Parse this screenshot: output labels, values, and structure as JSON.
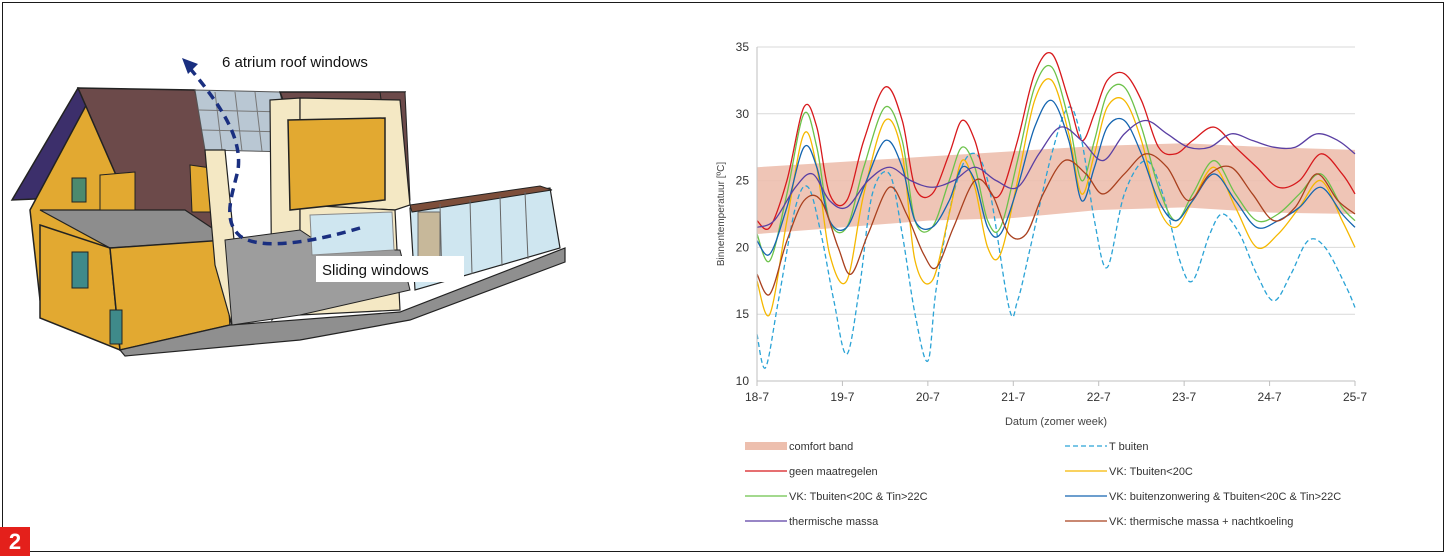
{
  "figure_number": "2",
  "illustration": {
    "label_roof": "6 atrium roof windows",
    "label_sliding": "Sliding windows"
  },
  "colors": {
    "comfort": "#edbfae",
    "t_buiten": "#2aa3d6",
    "geen": "#d7191c",
    "vk_tbuiten": "#f5b800",
    "vk_tin": "#6cc24a",
    "vk_zonwering": "#1465b0",
    "thermische": "#5a3fa3",
    "massa_nacht": "#a9401e"
  },
  "chart_data": {
    "type": "line",
    "xlabel": "Datum (zomer week)",
    "ylabel": "Binnentemperatuur [ºC]",
    "x_ticks": [
      "18-7",
      "19-7",
      "20-7",
      "21-7",
      "22-7",
      "23-7",
      "24-7",
      "25-7"
    ],
    "ylim": [
      10,
      35
    ],
    "y_ticks": [
      10,
      15,
      20,
      25,
      30,
      35
    ],
    "grid": "horizontal",
    "legend": "bottom",
    "comfort_band": {
      "name": "comfort band",
      "x": [
        0,
        1,
        2,
        3,
        4,
        5,
        6,
        7
      ],
      "lower": [
        21.0,
        21.5,
        22.0,
        22.2,
        22.8,
        23.0,
        22.6,
        22.5
      ],
      "upper": [
        26.0,
        26.4,
        26.8,
        27.2,
        27.6,
        27.8,
        27.5,
        27.3
      ]
    },
    "series": [
      {
        "name": "T buiten",
        "key": "t_buiten",
        "dashed": true,
        "x": [
          0,
          0.1,
          0.25,
          0.45,
          0.6,
          0.75,
          0.9,
          1.05,
          1.2,
          1.35,
          1.55,
          1.7,
          1.85,
          2.0,
          2.1,
          2.3,
          2.5,
          2.7,
          2.95,
          3.05,
          3.2,
          3.45,
          3.65,
          3.8,
          3.95,
          4.1,
          4.3,
          4.55,
          4.75,
          4.95,
          5.1,
          5.3,
          5.45,
          5.65,
          5.85,
          6.05,
          6.25,
          6.45,
          6.65,
          6.9,
          7.0
        ],
        "values": [
          13.5,
          11,
          16,
          23,
          24.5,
          21,
          16,
          12,
          17,
          24,
          25.5,
          21,
          15,
          11.5,
          17,
          24,
          27,
          25,
          15.5,
          16,
          20,
          27,
          30.5,
          28,
          22,
          18.5,
          24,
          26.5,
          24,
          19,
          17.5,
          21,
          22.5,
          21,
          18,
          16,
          18,
          20.5,
          20,
          17,
          15.5
        ]
      },
      {
        "name": "geen maatregelen",
        "key": "geen",
        "x": [
          0,
          0.15,
          0.35,
          0.55,
          0.7,
          0.85,
          1.05,
          1.25,
          1.5,
          1.7,
          1.85,
          2.05,
          2.25,
          2.4,
          2.55,
          2.7,
          2.85,
          3.05,
          3.25,
          3.45,
          3.65,
          3.8,
          3.95,
          4.1,
          4.3,
          4.5,
          4.7,
          4.9,
          5.1,
          5.35,
          5.6,
          5.85,
          6.1,
          6.35,
          6.6,
          6.85,
          7.0
        ],
        "values": [
          22,
          21.5,
          25,
          30.5,
          29,
          24,
          23.5,
          28,
          32,
          29.5,
          24.5,
          24,
          27,
          29.5,
          28,
          24.5,
          24,
          28,
          33,
          34.5,
          31,
          28,
          30,
          32.5,
          33,
          31,
          27.5,
          27,
          28,
          29,
          27.5,
          26,
          24.5,
          25,
          27,
          25.5,
          24
        ]
      },
      {
        "name": "VK: Tbuiten<20C",
        "key": "vk_tbuiten",
        "x": [
          0,
          0.15,
          0.35,
          0.55,
          0.7,
          0.85,
          1.05,
          1.25,
          1.5,
          1.7,
          1.85,
          2.05,
          2.25,
          2.4,
          2.55,
          2.7,
          2.85,
          3.05,
          3.25,
          3.45,
          3.65,
          3.8,
          3.95,
          4.1,
          4.3,
          4.5,
          4.7,
          4.9,
          5.1,
          5.35,
          5.6,
          5.85,
          6.1,
          6.35,
          6.6,
          6.85,
          7.0
        ],
        "values": [
          17.5,
          15,
          22,
          28.5,
          26,
          19.5,
          17.5,
          24,
          29.5,
          27,
          19,
          17.5,
          22.5,
          26.5,
          24.5,
          20,
          19.5,
          25,
          31,
          32.5,
          28.5,
          24,
          27,
          30.5,
          31,
          28,
          23,
          21.5,
          23.5,
          26,
          23,
          20,
          21,
          23,
          25,
          22,
          20
        ]
      },
      {
        "name": "VK: Tbuiten<20C & Tin>22C",
        "key": "vk_tin",
        "x": [
          0,
          0.15,
          0.35,
          0.55,
          0.7,
          0.85,
          1.05,
          1.25,
          1.5,
          1.7,
          1.85,
          2.05,
          2.25,
          2.4,
          2.55,
          2.7,
          2.85,
          3.05,
          3.25,
          3.45,
          3.65,
          3.8,
          3.95,
          4.1,
          4.3,
          4.5,
          4.7,
          4.9,
          5.1,
          5.35,
          5.6,
          5.85,
          6.1,
          6.35,
          6.6,
          6.85,
          7.0
        ],
        "values": [
          21,
          19,
          24,
          30,
          27.5,
          22,
          21.5,
          26,
          30.5,
          28,
          22,
          21.5,
          25,
          27.5,
          26,
          22,
          21.5,
          26.5,
          32,
          33.5,
          29.5,
          25,
          28,
          31.5,
          32,
          29,
          24.5,
          22,
          24,
          26.5,
          24,
          22,
          22.5,
          24,
          25.5,
          23,
          22
        ]
      },
      {
        "name": "VK: buitenzonwering & Tbuiten<20C & Tin>22C",
        "key": "vk_zonwering",
        "x": [
          0,
          0.15,
          0.35,
          0.55,
          0.7,
          0.85,
          1.05,
          1.25,
          1.5,
          1.7,
          1.85,
          2.05,
          2.25,
          2.4,
          2.55,
          2.7,
          2.85,
          3.05,
          3.25,
          3.45,
          3.65,
          3.8,
          3.95,
          4.1,
          4.3,
          4.5,
          4.7,
          4.9,
          5.1,
          5.35,
          5.6,
          5.85,
          6.1,
          6.35,
          6.6,
          6.85,
          7.0
        ],
        "values": [
          20.5,
          19.5,
          23,
          27.5,
          26,
          22,
          21.5,
          24.5,
          28,
          26,
          22,
          21.5,
          23.5,
          26,
          25,
          21.5,
          21,
          24.5,
          29,
          31,
          28,
          23.5,
          26,
          29,
          29.5,
          27,
          23.5,
          22,
          23.5,
          25.5,
          23.5,
          21.5,
          22,
          23,
          24.5,
          22.5,
          21.5
        ]
      },
      {
        "name": "thermische massa",
        "key": "thermische",
        "x": [
          0,
          0.2,
          0.45,
          0.65,
          0.85,
          1.05,
          1.3,
          1.55,
          1.8,
          2.05,
          2.3,
          2.55,
          2.8,
          3.05,
          3.3,
          3.55,
          3.8,
          4.05,
          4.3,
          4.55,
          4.8,
          5.05,
          5.3,
          5.55,
          5.8,
          6.05,
          6.3,
          6.55,
          6.8,
          7.0
        ],
        "values": [
          21.5,
          22,
          24.5,
          25.5,
          23.5,
          23,
          25,
          26,
          25,
          24.5,
          25,
          26,
          25,
          24.5,
          27,
          29,
          28,
          26.5,
          28.5,
          29.5,
          28.5,
          27.5,
          27.5,
          28.5,
          28,
          27.5,
          27.5,
          28.5,
          28,
          27
        ]
      },
      {
        "name": "VK: thermische massa + nachtkoeling",
        "key": "massa_nacht",
        "x": [
          0,
          0.15,
          0.35,
          0.55,
          0.75,
          0.95,
          1.1,
          1.3,
          1.55,
          1.75,
          1.95,
          2.1,
          2.3,
          2.55,
          2.75,
          2.95,
          3.15,
          3.35,
          3.6,
          3.85,
          4.05,
          4.3,
          4.55,
          4.8,
          5.05,
          5.3,
          5.55,
          5.8,
          6.05,
          6.3,
          6.55,
          6.8,
          7.0
        ],
        "values": [
          18,
          16.5,
          20.5,
          23.5,
          23.5,
          20,
          18,
          21,
          24.5,
          22.5,
          19.5,
          18.5,
          21.5,
          25,
          24,
          21,
          21,
          24,
          26.5,
          25.5,
          24,
          25.5,
          27,
          26,
          23.5,
          25.5,
          26,
          24,
          22,
          23,
          25.5,
          23.5,
          22.5
        ]
      }
    ]
  },
  "legend": {
    "comfort": "comfort band",
    "t_buiten": "T buiten",
    "geen": "geen maatregelen",
    "vk_tbuiten": "VK: Tbuiten<20C",
    "vk_tin": "VK: Tbuiten<20C & Tin>22C",
    "vk_zonwering": "VK: buitenzonwering & Tbuiten<20C & Tin>22C",
    "thermische": "thermische massa",
    "massa_nacht": "VK: thermische massa + nachtkoeling"
  }
}
